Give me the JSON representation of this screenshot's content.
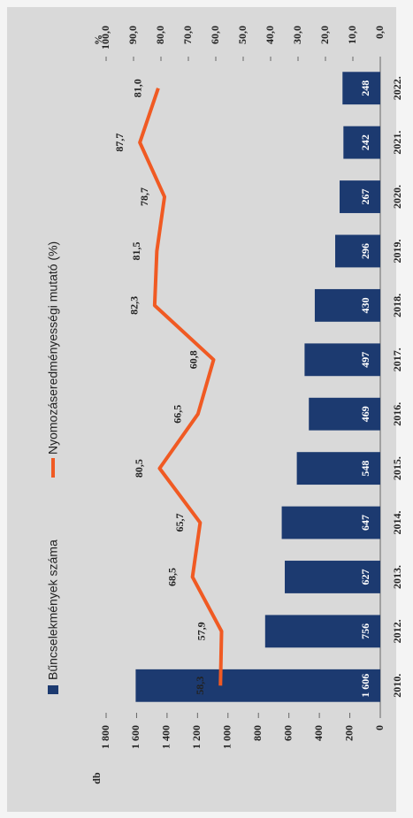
{
  "chart_data": {
    "type": "combo",
    "categories": [
      "2010.",
      "2012.",
      "2013.",
      "2014.",
      "2015.",
      "2016.",
      "2017.",
      "2018.",
      "2019.",
      "2020.",
      "2021.",
      "2022."
    ],
    "ylabel": "db",
    "y2label": "%",
    "ylim": [
      0,
      1800
    ],
    "yticks": [
      0,
      200,
      400,
      600,
      800,
      {
        "value": 1000,
        "label": "1 000"
      },
      {
        "value": 1200,
        "label": "1 200"
      },
      {
        "value": 1400,
        "label": "1 400"
      },
      {
        "value": 1600,
        "label": "1 600"
      },
      {
        "value": 1800,
        "label": "1 800"
      }
    ],
    "y2lim": [
      0,
      100
    ],
    "y2ticks": [
      {
        "value": 0,
        "label": "0,0"
      },
      {
        "value": 10,
        "label": "10,0"
      },
      {
        "value": 20,
        "label": "20,0"
      },
      {
        "value": 30,
        "label": "30,0"
      },
      {
        "value": 40,
        "label": "40,0"
      },
      {
        "value": 50,
        "label": "50,0"
      },
      {
        "value": 60,
        "label": "60,0"
      },
      {
        "value": 70,
        "label": "70,0"
      },
      {
        "value": 80,
        "label": "80,0"
      },
      {
        "value": 90,
        "label": "90,0"
      },
      {
        "value": 100,
        "label": "100,0"
      }
    ],
    "series": [
      {
        "name": "Bűncselekmények száma",
        "type": "bar",
        "color": "#1c3a70",
        "values": [
          1606,
          756,
          627,
          647,
          548,
          469,
          497,
          430,
          296,
          267,
          242,
          248
        ],
        "value_labels": [
          "1 606",
          "756",
          "627",
          "647",
          "548",
          "469",
          "497",
          "430",
          "296",
          "267",
          "242",
          "248"
        ]
      },
      {
        "name": "Nyomozáseredményességi mutató (%)",
        "type": "line",
        "axis": "y2",
        "color": "#f05a23",
        "values": [
          58.3,
          57.9,
          68.5,
          65.7,
          80.5,
          66.5,
          60.8,
          82.3,
          81.5,
          78.7,
          87.7,
          81.0
        ],
        "value_labels": [
          "58,3",
          "57,9",
          "68,5",
          "65,7",
          "80,5",
          "66,5",
          "60,8",
          "82,3",
          "81,5",
          "78,7",
          "87,7",
          "81,0"
        ]
      }
    ]
  }
}
